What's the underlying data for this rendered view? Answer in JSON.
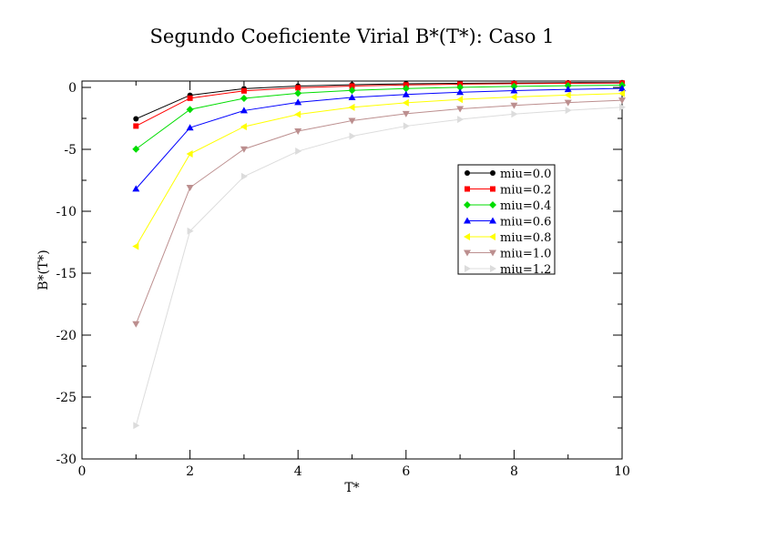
{
  "chart_data": {
    "type": "line",
    "title": "Segundo Coeficiente Virial B*(T*): Caso 1",
    "xlabel": "T*",
    "ylabel": "B*(T*)",
    "xlim": [
      0,
      10
    ],
    "ylim": [
      -30,
      0.5
    ],
    "xticks": [
      0,
      2,
      4,
      6,
      8,
      10
    ],
    "yticks": [
      -30,
      -25,
      -20,
      -15,
      -10,
      -5,
      0
    ],
    "x": [
      1,
      2,
      3,
      4,
      5,
      6,
      7,
      8,
      9,
      10
    ],
    "grid": false,
    "legend_position": "right",
    "series": [
      {
        "name": "miu=0.0",
        "color": "#000000",
        "marker": "circle",
        "values": [
          -2.54,
          -0.63,
          -0.1,
          0.11,
          0.22,
          0.29,
          0.33,
          0.36,
          0.38,
          0.39
        ]
      },
      {
        "name": "miu=0.2",
        "color": "#ff0000",
        "marker": "square",
        "values": [
          -3.12,
          -0.87,
          -0.28,
          -0.03,
          0.11,
          0.2,
          0.26,
          0.3,
          0.33,
          0.35
        ]
      },
      {
        "name": "miu=0.4",
        "color": "#00dd00",
        "marker": "diamond",
        "values": [
          -4.98,
          -1.78,
          -0.88,
          -0.47,
          -0.24,
          -0.09,
          0.01,
          0.08,
          0.14,
          0.18
        ]
      },
      {
        "name": "miu=0.6",
        "color": "#0000ff",
        "marker": "triangle-up",
        "values": [
          -8.19,
          -3.25,
          -1.87,
          -1.2,
          -0.81,
          -0.57,
          -0.39,
          -0.26,
          -0.16,
          -0.08
        ]
      },
      {
        "name": "miu=0.8",
        "color": "#ffff00",
        "marker": "triangle-left",
        "values": [
          -12.83,
          -5.37,
          -3.17,
          -2.18,
          -1.61,
          -1.24,
          -0.97,
          -0.77,
          -0.62,
          -0.49
        ]
      },
      {
        "name": "miu=1.0",
        "color": "#bc8f8f",
        "marker": "triangle-down",
        "values": [
          -19.1,
          -8.09,
          -4.98,
          -3.53,
          -2.68,
          -2.12,
          -1.73,
          -1.45,
          -1.22,
          -1.04
        ]
      },
      {
        "name": "miu=1.2",
        "color": "#dcdcdc",
        "marker": "triangle-right",
        "values": [
          -27.3,
          -11.6,
          -7.19,
          -5.15,
          -3.93,
          -3.12,
          -2.58,
          -2.15,
          -1.85,
          -1.6
        ]
      }
    ]
  }
}
